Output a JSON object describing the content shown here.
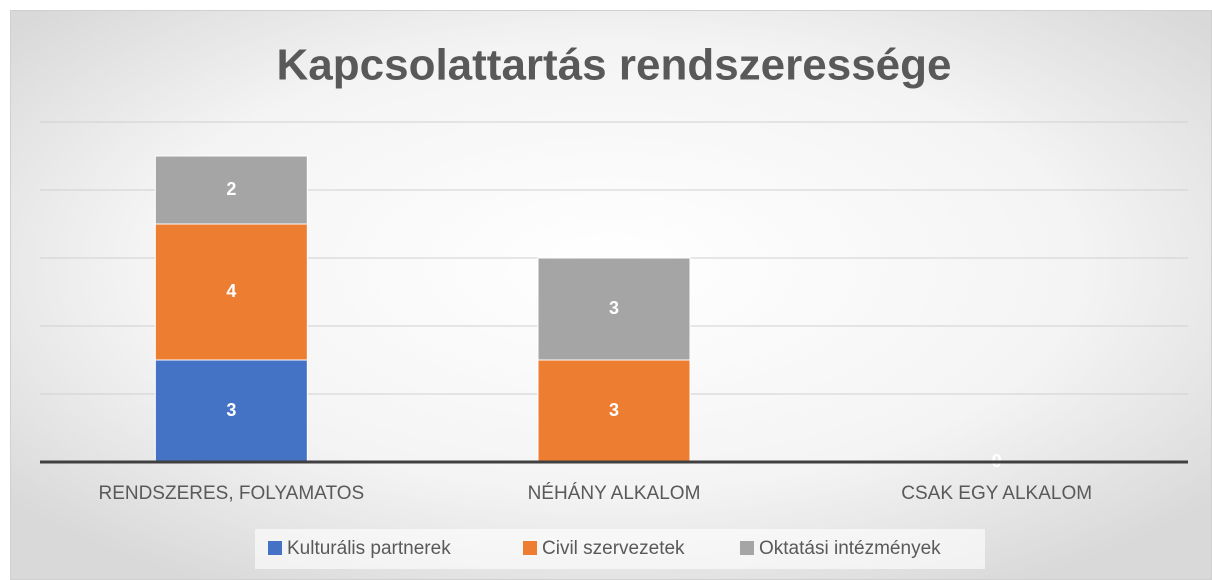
{
  "chart_data": {
    "type": "stacked_bar",
    "title": "Kapcsolattartás rendszeressége",
    "categories": [
      "RENDSZERES, FOLYAMATOS",
      "NÉHÁNY ALKALOM",
      "CSAK EGY ALKALOM"
    ],
    "series": [
      {
        "name": "Kulturális partnerek",
        "color": "#4472c4",
        "values": [
          3,
          null,
          null
        ]
      },
      {
        "name": "Civil szervezetek",
        "color": "#ed7d31",
        "values": [
          4,
          3,
          null
        ]
      },
      {
        "name": "Oktatási intézmények",
        "color": "#a5a5a5",
        "values": [
          2,
          3,
          0
        ]
      }
    ],
    "ylim": [
      0,
      10
    ],
    "yticks": [
      0,
      2,
      4,
      6,
      8,
      10
    ],
    "grid": true,
    "legend": "bottom"
  }
}
